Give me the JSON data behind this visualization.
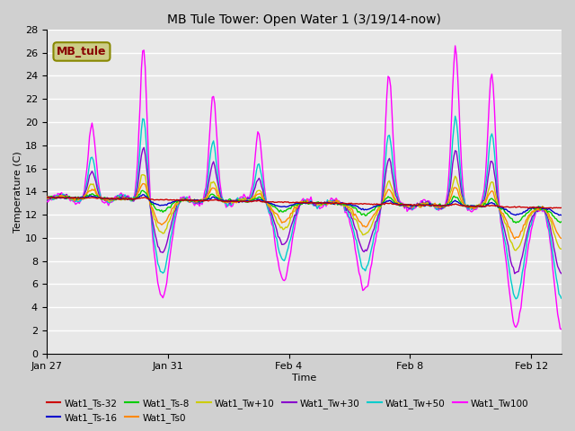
{
  "title": "MB Tule Tower: Open Water 1 (3/19/14-now)",
  "xlabel": "Time",
  "ylabel": "Temperature (C)",
  "ylim": [
    0,
    28
  ],
  "yticks": [
    0,
    2,
    4,
    6,
    8,
    10,
    12,
    14,
    16,
    18,
    20,
    22,
    24,
    26,
    28
  ],
  "series_colors": {
    "Wat1_Ts-32": "#cc0000",
    "Wat1_Ts-16": "#0000cc",
    "Wat1_Ts-8": "#00cc00",
    "Wat1_Ts0": "#ff8800",
    "Wat1_Tw+10": "#cccc00",
    "Wat1_Tw+30": "#8800cc",
    "Wat1_Tw+50": "#00cccc",
    "Wat1_Tw100": "#ff00ff"
  },
  "legend_box_color": "#cccc88",
  "legend_box_text": "MB_tule",
  "legend_box_text_color": "#880000",
  "x_tick_labels": [
    "Jan 27",
    "Jan 31",
    "Feb 4",
    "Feb 8",
    "Feb 12"
  ],
  "x_tick_positions": [
    0,
    4,
    8,
    12,
    16
  ]
}
